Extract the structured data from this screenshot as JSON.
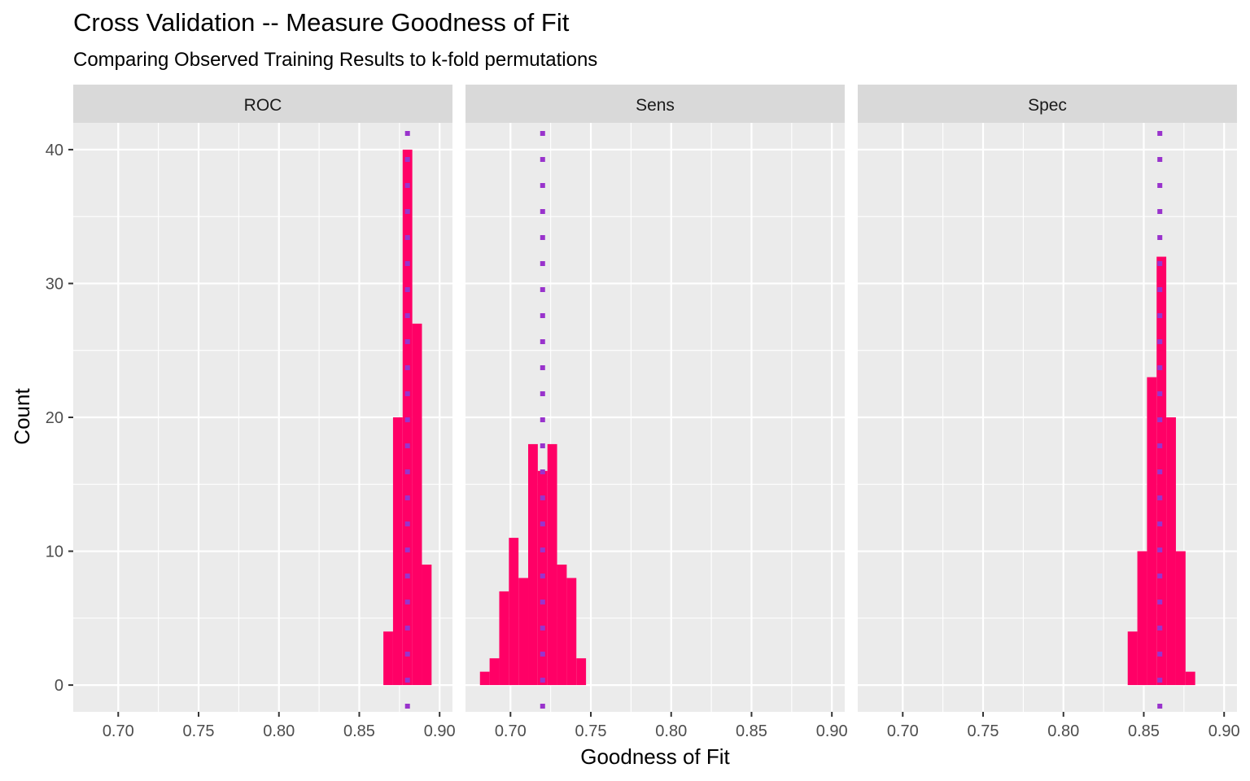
{
  "chart_data": {
    "type": "bar",
    "title": "Cross Validation -- Measure Goodness of Fit",
    "subtitle": "Comparing Observed Training Results to k-fold permutations",
    "xlabel": "Goodness of Fit",
    "ylabel": "Count",
    "xlim": [
      0.672,
      0.908
    ],
    "ylim": [
      -2,
      42
    ],
    "x_ticks": [
      0.7,
      0.75,
      0.8,
      0.85,
      0.9
    ],
    "x_tick_labels": [
      "0.70",
      "0.75",
      "0.80",
      "0.85",
      "0.90"
    ],
    "y_ticks": [
      0,
      10,
      20,
      30,
      40
    ],
    "y_tick_labels": [
      "0",
      "10",
      "20",
      "30",
      "40"
    ],
    "grid": true,
    "bar_color": "#ff0066",
    "observed_line_color": "#9933cc",
    "observed_line_style": "dotted",
    "bin_width": 0.006,
    "facets": [
      {
        "name": "ROC",
        "observed": 0.88,
        "bins": [
          {
            "x": 0.868,
            "count": 4
          },
          {
            "x": 0.874,
            "count": 20
          },
          {
            "x": 0.88,
            "count": 40
          },
          {
            "x": 0.886,
            "count": 27
          },
          {
            "x": 0.892,
            "count": 9
          }
        ]
      },
      {
        "name": "Sens",
        "observed": 0.72,
        "bins": [
          {
            "x": 0.684,
            "count": 1
          },
          {
            "x": 0.69,
            "count": 2
          },
          {
            "x": 0.696,
            "count": 7
          },
          {
            "x": 0.702,
            "count": 11
          },
          {
            "x": 0.708,
            "count": 8
          },
          {
            "x": 0.714,
            "count": 18
          },
          {
            "x": 0.72,
            "count": 16
          },
          {
            "x": 0.726,
            "count": 18
          },
          {
            "x": 0.732,
            "count": 9
          },
          {
            "x": 0.738,
            "count": 8
          },
          {
            "x": 0.744,
            "count": 2
          }
        ]
      },
      {
        "name": "Spec",
        "observed": 0.86,
        "bins": [
          {
            "x": 0.843,
            "count": 4
          },
          {
            "x": 0.849,
            "count": 10
          },
          {
            "x": 0.855,
            "count": 23
          },
          {
            "x": 0.861,
            "count": 32
          },
          {
            "x": 0.867,
            "count": 20
          },
          {
            "x": 0.873,
            "count": 10
          },
          {
            "x": 0.879,
            "count": 1
          }
        ]
      }
    ]
  }
}
